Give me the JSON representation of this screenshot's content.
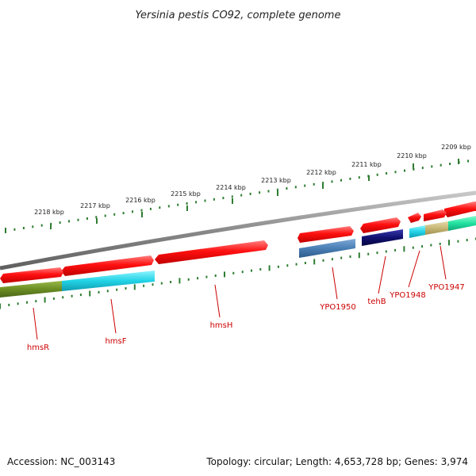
{
  "title": "Yersinia pestis CO92, complete genome",
  "footer": {
    "accession": "Accession: NC_003143",
    "summary": "Topology: circular; Length: 4,653,728 bp; Genes: 3,974"
  },
  "scale_labels": [
    "2209 kbp",
    "2210 kbp",
    "2211 kbp",
    "2212 kbp",
    "2213 kbp",
    "2214 kbp",
    "2215 kbp",
    "2216 kbp",
    "2217 kbp",
    "2218 kbp"
  ],
  "gene_labels": [
    "hmsR",
    "hmsF",
    "hmsH",
    "YPO1950",
    "tehB",
    "YPO1948",
    "YPO1947"
  ],
  "colors": {
    "gene_red": "#ee1111",
    "backbone": "#8a8a8a",
    "tick_green": "#2e7d32",
    "label_red": "#cc0000",
    "olive": "#6b8e23",
    "cyan": "#22d3e6",
    "steel_blue": "#4a7fb5",
    "navy": "#101070",
    "khaki": "#c8b878",
    "spring_green": "#22e0a0"
  }
}
